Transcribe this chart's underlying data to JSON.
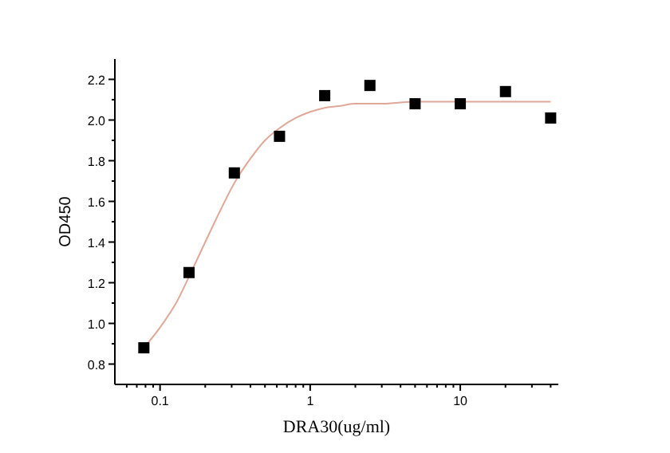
{
  "chart_data": {
    "type": "scatter",
    "xlabel": "DRA30(ug/ml)",
    "ylabel": "OD450",
    "log": "x",
    "grid": false,
    "xlim": [
      0.05,
      45
    ],
    "ylim": [
      0.7,
      2.3
    ],
    "xticks": [
      {
        "value": 0.06,
        "label": null
      },
      {
        "value": 0.07,
        "label": null
      },
      {
        "value": 0.08,
        "label": null
      },
      {
        "value": 0.09,
        "label": null
      },
      {
        "value": 0.1,
        "label": "0.1"
      },
      {
        "value": 0.2,
        "label": null
      },
      {
        "value": 0.3,
        "label": null
      },
      {
        "value": 0.4,
        "label": null
      },
      {
        "value": 0.5,
        "label": null
      },
      {
        "value": 0.6,
        "label": null
      },
      {
        "value": 0.7,
        "label": null
      },
      {
        "value": 0.8,
        "label": null
      },
      {
        "value": 0.9,
        "label": null
      },
      1,
      {
        "value": 2,
        "label": null
      },
      {
        "value": 3,
        "label": null
      },
      {
        "value": 4,
        "label": null
      },
      {
        "value": 5,
        "label": null
      },
      {
        "value": 6,
        "label": null
      },
      {
        "value": 7,
        "label": null
      },
      {
        "value": 8,
        "label": null
      },
      {
        "value": 9,
        "label": null
      },
      10,
      {
        "value": 20,
        "label": null
      },
      {
        "value": 30,
        "label": null
      },
      {
        "value": 40,
        "label": null
      }
    ],
    "yticks": [
      {
        "value": 0.8,
        "label": "0.8"
      },
      {
        "value": 0.9,
        "label": null
      },
      {
        "value": 1.0,
        "label": "1.0"
      },
      {
        "value": 1.1,
        "label": null
      },
      1.2,
      {
        "value": 1.3,
        "label": null
      },
      1.4,
      {
        "value": 1.5,
        "label": null
      },
      1.6,
      {
        "value": 1.7,
        "label": null
      },
      1.8,
      {
        "value": 1.9,
        "label": null
      },
      {
        "value": 2.0,
        "label": "2.0"
      },
      {
        "value": 2.1,
        "label": null
      },
      2.2
    ],
    "series": [
      {
        "marker": "square",
        "color": "#000000",
        "x": [
          0.078,
          0.156,
          0.3125,
          0.625,
          1.25,
          2.5,
          5,
          10,
          20,
          40
        ],
        "values": [
          0.88,
          1.25,
          1.74,
          1.92,
          2.12,
          2.17,
          2.08,
          2.08,
          2.14,
          2.01
        ]
      },
      {
        "type": "line",
        "color": "#e0a898",
        "x": [
          0.078,
          0.1,
          0.13,
          0.156,
          0.2,
          0.25,
          0.3125,
          0.4,
          0.5,
          0.625,
          0.8,
          1,
          1.25,
          1.6,
          2,
          3,
          5,
          10,
          20,
          40
        ],
        "values": [
          0.88,
          0.98,
          1.11,
          1.23,
          1.4,
          1.55,
          1.69,
          1.81,
          1.9,
          1.96,
          2.01,
          2.04,
          2.06,
          2.07,
          2.08,
          2.08,
          2.09,
          2.09,
          2.09,
          2.09
        ]
      }
    ]
  }
}
